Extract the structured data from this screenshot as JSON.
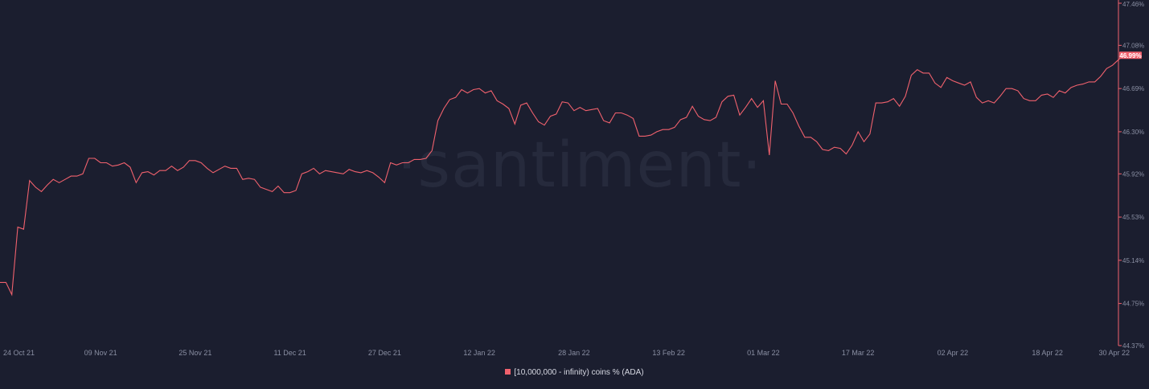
{
  "colors": {
    "background": "#1b1e2f",
    "line": "#f0616d",
    "axis": "#f0616d",
    "tick_text": "#8a8fa3",
    "watermark": "#262a3c"
  },
  "watermark": "·santiment·",
  "legend": {
    "label": "[10,000,000 - infinity) coins % (ADA)",
    "position": "bottom-center"
  },
  "chart_data": {
    "type": "line",
    "grid": false,
    "xlabel": "",
    "ylabel": "",
    "x_ticks": [
      "24 Oct 21",
      "09 Nov 21",
      "25 Nov 21",
      "11 Dec 21",
      "27 Dec 21",
      "12 Jan 22",
      "28 Jan 22",
      "13 Feb 22",
      "01 Mar 22",
      "17 Mar 22",
      "02 Apr 22",
      "18 Apr 22",
      "30 Apr 22"
    ],
    "y_ticks": [
      "44.37%",
      "44.75%",
      "45.14%",
      "45.53%",
      "45.92%",
      "46.30%",
      "46.69%",
      "47.08%",
      "47.46%"
    ],
    "ylim": [
      44.37,
      47.46
    ],
    "xlim": [
      "2021-10-23",
      "2022-04-30"
    ],
    "current_value_label": "46.99%",
    "series": [
      {
        "name": "[10,000,000 - infinity) coins % (ADA)",
        "x_start": "2021-10-23",
        "values": [
          44.94,
          44.94,
          44.83,
          45.44,
          45.42,
          45.86,
          45.8,
          45.76,
          45.82,
          45.87,
          45.84,
          45.87,
          45.9,
          45.9,
          45.92,
          46.06,
          46.06,
          46.02,
          46.02,
          45.99,
          46.0,
          46.02,
          45.98,
          45.84,
          45.93,
          45.94,
          45.91,
          45.95,
          45.95,
          45.99,
          45.95,
          45.98,
          46.04,
          46.04,
          46.02,
          45.97,
          45.93,
          45.96,
          45.99,
          45.97,
          45.97,
          45.87,
          45.88,
          45.87,
          45.8,
          45.78,
          45.76,
          45.81,
          45.75,
          45.75,
          45.77,
          45.92,
          45.94,
          45.97,
          45.92,
          45.95,
          45.94,
          45.93,
          45.92,
          45.96,
          45.94,
          45.93,
          45.95,
          45.93,
          45.89,
          45.84,
          46.02,
          46.0,
          46.02,
          46.02,
          46.05,
          46.05,
          46.06,
          46.13,
          46.4,
          46.51,
          46.59,
          46.61,
          46.68,
          46.65,
          46.68,
          46.69,
          46.65,
          46.67,
          46.58,
          46.55,
          46.51,
          46.37,
          46.54,
          46.56,
          46.47,
          46.39,
          46.36,
          46.44,
          46.46,
          46.57,
          46.56,
          46.49,
          46.52,
          46.49,
          46.5,
          46.51,
          46.4,
          46.38,
          46.47,
          46.47,
          46.45,
          46.42,
          46.26,
          46.26,
          46.27,
          46.3,
          46.32,
          46.32,
          46.34,
          46.41,
          46.43,
          46.53,
          46.44,
          46.41,
          46.4,
          46.43,
          46.57,
          46.62,
          46.63,
          46.45,
          46.52,
          46.6,
          46.52,
          46.58,
          46.09,
          46.76,
          46.55,
          46.55,
          46.47,
          46.35,
          46.25,
          46.25,
          46.21,
          46.14,
          46.13,
          46.16,
          46.15,
          46.1,
          46.18,
          46.3,
          46.21,
          46.28,
          46.56,
          46.56,
          46.57,
          46.6,
          46.53,
          46.62,
          46.81,
          46.86,
          46.83,
          46.83,
          46.74,
          46.7,
          46.79,
          46.76,
          46.74,
          46.72,
          46.75,
          46.61,
          46.56,
          46.58,
          46.56,
          46.62,
          46.69,
          46.69,
          46.67,
          46.6,
          46.58,
          46.58,
          46.63,
          46.64,
          46.61,
          46.67,
          46.65,
          46.7,
          46.72,
          46.73,
          46.75,
          46.75,
          46.8,
          46.87,
          46.9,
          46.95,
          46.99,
          46.99
        ]
      }
    ]
  }
}
